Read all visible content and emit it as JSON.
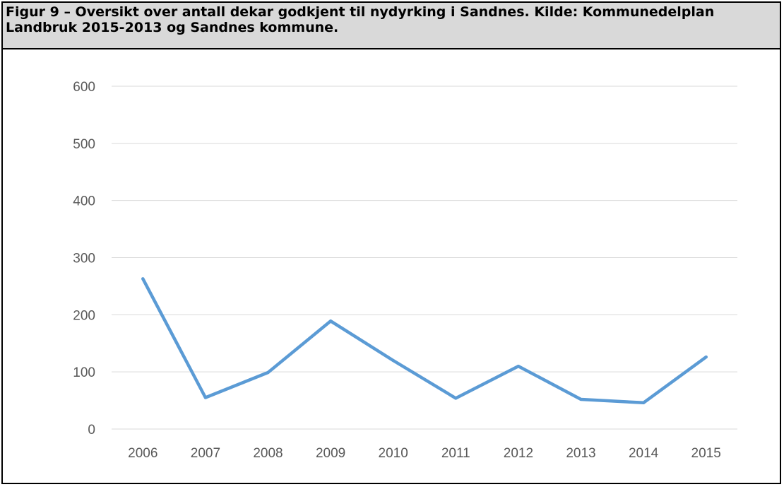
{
  "caption": {
    "text": "Figur 9 – Oversikt over antall dekar godkjent til nydyrking i Sandnes. Kilde: Kommunedelplan Landbruk 2015-2013 og Sandnes kommune."
  },
  "chart_data": {
    "type": "line",
    "title": "",
    "xlabel": "",
    "ylabel": "",
    "x": [
      "2006",
      "2007",
      "2008",
      "2009",
      "2010",
      "2011",
      "2012",
      "2013",
      "2014",
      "2015"
    ],
    "series": [
      {
        "values": [
          263,
          55,
          99,
          189,
          120,
          54,
          110,
          52,
          46,
          126
        ],
        "color": "#5b9bd5"
      }
    ],
    "ylim": [
      0,
      600
    ],
    "yticks": [
      0,
      100,
      200,
      300,
      400,
      500,
      600
    ],
    "grid": true,
    "legend": "none",
    "colors": {
      "line": "#5b9bd5",
      "grid": "#d9d9d9",
      "tick_text": "#595959",
      "caption_bg": "#d9d9d9"
    }
  }
}
